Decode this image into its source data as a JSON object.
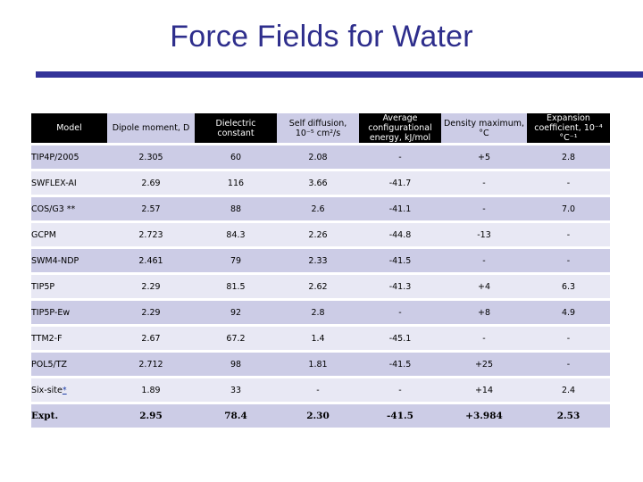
{
  "title": "Force Fields for Water",
  "colors": {
    "title": "#2e2e8c",
    "rule": "#333399",
    "header_dark": "#000000",
    "row_band": "#cccce6",
    "row_light": "#e8e8f4"
  },
  "table": {
    "headers": [
      "Model",
      "Dipole moment, D",
      "Dielectric constant",
      "Self diffusion, 10⁻⁵ cm²/s",
      "Average configurational energy, kJ/mol",
      "Density maximum, °C",
      "Expansion coefficient, 10⁻⁴ °C⁻¹"
    ],
    "rows": [
      [
        "TIP4P/2005",
        "2.305",
        "60",
        "2.08",
        "-",
        "+5",
        "2.8"
      ],
      [
        "SWFLEX-AI",
        "2.69",
        "116",
        "3.66",
        "-41.7",
        "-",
        "-"
      ],
      [
        "COS/G3 **",
        "2.57",
        "88",
        "2.6",
        "-41.1",
        "-",
        "7.0"
      ],
      [
        "GCPM",
        "2.723",
        "84.3",
        "2.26",
        "-44.8",
        "-13",
        "-"
      ],
      [
        "SWM4-NDP",
        "2.461",
        "79",
        "2.33",
        "-41.5",
        "-",
        "-"
      ],
      [
        "TIP5P",
        "2.29",
        "81.5",
        "2.62",
        "-41.3",
        "+4",
        "6.3"
      ],
      [
        "TIP5P-Ew",
        "2.29",
        "92",
        "2.8",
        "-",
        "+8",
        "4.9"
      ],
      [
        "TTM2-F",
        "2.67",
        "67.2",
        "1.4",
        "-45.1",
        "-",
        "-"
      ],
      [
        "POL5/TZ",
        "2.712",
        "98",
        "1.81",
        "-41.5",
        "+25",
        "-"
      ],
      [
        "Six-site",
        "1.89",
        "33",
        "-",
        "-",
        "+14",
        "2.4"
      ],
      [
        "Expt.",
        "2.95",
        "78.4",
        "2.30",
        "-41.5",
        "+3.984",
        "2.53"
      ]
    ],
    "six_site_note": "*"
  }
}
